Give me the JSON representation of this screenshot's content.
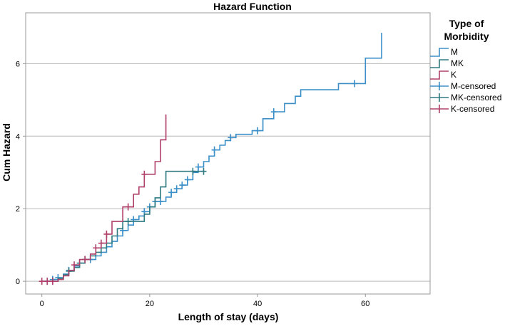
{
  "chart_data": {
    "type": "line",
    "title": "Hazard Function",
    "xlabel": "Length of stay (days)",
    "ylabel": "Cum Hazard",
    "xlim": [
      -3,
      72
    ],
    "ylim": [
      -0.35,
      7.4
    ],
    "x_ticks": [
      0,
      20,
      40,
      60
    ],
    "y_ticks": [
      0,
      2,
      4,
      6
    ],
    "grid": "horizontal",
    "legend_title": "Type of Morbidity",
    "legend_title_lines": [
      "Type of",
      "Morbidity"
    ],
    "legend_position": "right",
    "series": [
      {
        "name": "M",
        "color": "#3b8fc8",
        "points": [
          [
            0,
            0
          ],
          [
            2,
            0
          ],
          [
            2,
            0.05
          ],
          [
            3,
            0.05
          ],
          [
            3,
            0.1
          ],
          [
            4,
            0.1
          ],
          [
            4,
            0.2
          ],
          [
            5,
            0.2
          ],
          [
            5,
            0.3
          ],
          [
            6,
            0.3
          ],
          [
            6,
            0.42
          ],
          [
            7,
            0.42
          ],
          [
            7,
            0.5
          ],
          [
            8,
            0.5
          ],
          [
            8,
            0.6
          ],
          [
            10,
            0.6
          ],
          [
            10,
            0.7
          ],
          [
            11,
            0.7
          ],
          [
            11,
            0.8
          ],
          [
            12,
            0.8
          ],
          [
            12,
            0.95
          ],
          [
            13,
            0.95
          ],
          [
            13,
            1.1
          ],
          [
            14,
            1.1
          ],
          [
            14,
            1.25
          ],
          [
            15,
            1.25
          ],
          [
            15,
            1.4
          ],
          [
            16,
            1.4
          ],
          [
            16,
            1.55
          ],
          [
            17,
            1.55
          ],
          [
            17,
            1.7
          ],
          [
            18,
            1.7
          ],
          [
            18,
            1.8
          ],
          [
            19,
            1.8
          ],
          [
            19,
            1.92
          ],
          [
            20,
            1.92
          ],
          [
            20,
            2.05
          ],
          [
            21,
            2.05
          ],
          [
            21,
            2.2
          ],
          [
            23,
            2.2
          ],
          [
            23,
            2.32
          ],
          [
            24,
            2.32
          ],
          [
            24,
            2.45
          ],
          [
            25,
            2.45
          ],
          [
            25,
            2.55
          ],
          [
            26,
            2.55
          ],
          [
            26,
            2.65
          ],
          [
            27,
            2.65
          ],
          [
            27,
            2.8
          ],
          [
            28,
            2.8
          ],
          [
            28,
            3.0
          ],
          [
            29,
            3.0
          ],
          [
            29,
            3.15
          ],
          [
            30,
            3.15
          ],
          [
            30,
            3.3
          ],
          [
            31,
            3.3
          ],
          [
            31,
            3.45
          ],
          [
            32,
            3.45
          ],
          [
            32,
            3.62
          ],
          [
            33,
            3.62
          ],
          [
            33,
            3.75
          ],
          [
            34,
            3.75
          ],
          [
            34,
            3.88
          ],
          [
            35,
            3.88
          ],
          [
            35,
            3.96
          ],
          [
            36,
            3.96
          ],
          [
            36,
            4.05
          ],
          [
            39,
            4.05
          ],
          [
            39,
            4.15
          ],
          [
            41,
            4.15
          ],
          [
            41,
            4.48
          ],
          [
            43,
            4.48
          ],
          [
            43,
            4.67
          ],
          [
            45,
            4.67
          ],
          [
            45,
            4.9
          ],
          [
            47,
            4.9
          ],
          [
            47,
            5.1
          ],
          [
            48,
            5.1
          ],
          [
            48,
            5.28
          ],
          [
            55,
            5.28
          ],
          [
            55,
            5.45
          ],
          [
            60,
            5.45
          ],
          [
            60,
            6.15
          ],
          [
            63,
            6.15
          ],
          [
            63,
            6.85
          ]
        ],
        "censored_x": [
          1,
          2,
          3,
          5,
          9,
          15,
          17,
          19,
          20,
          21,
          22,
          24,
          25,
          26,
          27,
          29,
          32,
          35,
          40,
          43,
          58
        ]
      },
      {
        "name": "MK",
        "color": "#2e7a80",
        "points": [
          [
            0,
            0
          ],
          [
            3,
            0
          ],
          [
            3,
            0.08
          ],
          [
            4,
            0.08
          ],
          [
            4,
            0.18
          ],
          [
            5,
            0.18
          ],
          [
            5,
            0.28
          ],
          [
            6,
            0.28
          ],
          [
            6,
            0.38
          ],
          [
            7,
            0.38
          ],
          [
            7,
            0.5
          ],
          [
            8,
            0.5
          ],
          [
            8,
            0.6
          ],
          [
            9,
            0.6
          ],
          [
            9,
            0.7
          ],
          [
            10,
            0.7
          ],
          [
            10,
            0.8
          ],
          [
            11,
            0.8
          ],
          [
            11,
            0.92
          ],
          [
            12,
            0.92
          ],
          [
            12,
            1.05
          ],
          [
            13,
            1.05
          ],
          [
            13,
            1.25
          ],
          [
            14,
            1.25
          ],
          [
            14,
            1.45
          ],
          [
            15,
            1.45
          ],
          [
            15,
            1.65
          ],
          [
            19,
            1.65
          ],
          [
            19,
            1.85
          ],
          [
            20,
            1.85
          ],
          [
            20,
            2.05
          ],
          [
            21,
            2.05
          ],
          [
            21,
            2.3
          ],
          [
            22,
            2.3
          ],
          [
            22,
            2.6
          ],
          [
            23,
            2.6
          ],
          [
            23,
            3.03
          ],
          [
            30,
            3.03
          ]
        ],
        "censored_x": [
          2,
          5,
          7,
          8,
          16,
          28,
          30
        ]
      },
      {
        "name": "K",
        "color": "#b0406a",
        "points": [
          [
            0,
            0
          ],
          [
            3,
            0
          ],
          [
            3,
            0.05
          ],
          [
            4,
            0.05
          ],
          [
            4,
            0.15
          ],
          [
            5,
            0.15
          ],
          [
            5,
            0.3
          ],
          [
            6,
            0.3
          ],
          [
            6,
            0.45
          ],
          [
            7,
            0.45
          ],
          [
            7,
            0.6
          ],
          [
            9,
            0.6
          ],
          [
            9,
            0.75
          ],
          [
            10,
            0.75
          ],
          [
            10,
            0.92
          ],
          [
            11,
            0.92
          ],
          [
            11,
            1.05
          ],
          [
            12,
            1.05
          ],
          [
            12,
            1.3
          ],
          [
            13,
            1.3
          ],
          [
            13,
            1.65
          ],
          [
            15,
            1.65
          ],
          [
            15,
            2.05
          ],
          [
            17,
            2.05
          ],
          [
            17,
            2.4
          ],
          [
            18,
            2.4
          ],
          [
            18,
            2.6
          ],
          [
            19,
            2.6
          ],
          [
            19,
            2.95
          ],
          [
            21,
            2.95
          ],
          [
            21,
            3.3
          ],
          [
            22,
            3.3
          ],
          [
            22,
            3.9
          ],
          [
            23,
            3.9
          ],
          [
            23,
            4.6
          ]
        ],
        "censored_x": [
          0,
          1,
          2,
          6,
          8,
          10,
          11,
          12,
          16,
          19
        ]
      }
    ],
    "legend_entries": [
      {
        "label": "M",
        "color": "#3b8fc8",
        "kind": "line"
      },
      {
        "label": "MK",
        "color": "#2e7a80",
        "kind": "line"
      },
      {
        "label": "K",
        "color": "#b0406a",
        "kind": "line"
      },
      {
        "label": "M-censored",
        "color": "#3b8fc8",
        "kind": "censored"
      },
      {
        "label": "MK-censored",
        "color": "#2e7a80",
        "kind": "censored"
      },
      {
        "label": "K-censored",
        "color": "#b0406a",
        "kind": "censored"
      }
    ],
    "colors": {
      "grid": "#b8b8b8",
      "axis": "#999999"
    }
  }
}
